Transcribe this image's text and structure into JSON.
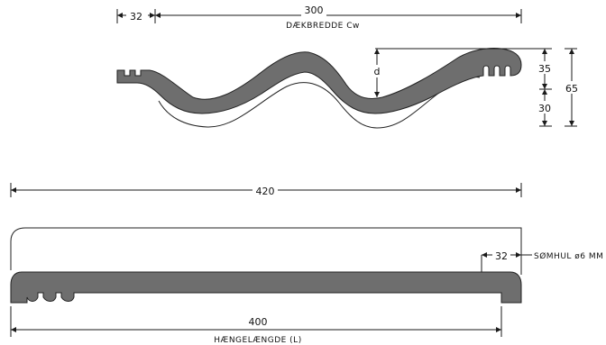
{
  "top_view": {
    "dim_overlap": "32",
    "dim_cover_width": "300",
    "label_cover_width": "DÆKBREDDE Cw",
    "dim_d": "d",
    "dim_35": "35",
    "dim_30": "30",
    "dim_65": "65"
  },
  "side_view": {
    "dim_total_length": "420",
    "dim_hole_offset": "32",
    "label_nail_hole": "SØMHUL ø6 MM",
    "dim_hang_length": "400",
    "label_hang_length": "HÆNGELÆNGDE (L)"
  },
  "colors": {
    "profile_fill": "#6e6e6e",
    "line": "#1a1a1a"
  }
}
